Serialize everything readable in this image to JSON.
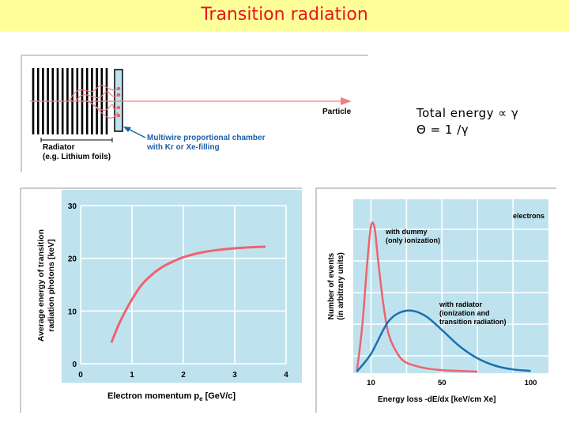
{
  "title": "Transition radiation",
  "formula": {
    "line1": "Total energy ∝ γ",
    "line2": "Θ = 1 /γ"
  },
  "colors": {
    "title_bg": "#ffff99",
    "title_text": "#e8141c",
    "plot_bg": "#bfe3ee",
    "curve_red": "#f0626f",
    "curve_blue": "#1a70b0",
    "annotation_blue": "#1a5fa8",
    "particle_line": "#f08080"
  },
  "detector_diagram": {
    "particle_label": "Particle",
    "radiator_label_line1": "Radiator",
    "radiator_label_line2": "(e.g. Lithium foils)",
    "chamber_label_line1": "Multiwire proportional chamber",
    "chamber_label_line2": "with Kr or Xe-filling"
  },
  "chart_data": [
    {
      "type": "line",
      "xlabel": "Electron momentum p",
      "xlabel_subscript": "e",
      "xlabel_unit": "[GeV/c]",
      "ylabel_line1": "Average energy of transition",
      "ylabel_line2": "radiation photons [keV]",
      "xlim": [
        0,
        4
      ],
      "ylim": [
        0,
        30
      ],
      "xticks": [
        "0",
        "1",
        "2",
        "3",
        "4"
      ],
      "yticks": [
        "0",
        "10",
        "20",
        "30"
      ],
      "grid": true,
      "series": [
        {
          "x": [
            0.6,
            0.75,
            0.9,
            1.05,
            1.2,
            1.4,
            1.6,
            1.8,
            2.0,
            2.3,
            2.6,
            3.0,
            3.3,
            3.6
          ],
          "values": [
            4,
            7.6,
            10.5,
            13.0,
            15.1,
            17.0,
            18.4,
            19.4,
            20.2,
            21.0,
            21.5,
            21.9,
            22.1,
            22.2
          ]
        }
      ]
    },
    {
      "type": "line",
      "xlabel": "Energy loss -dE/dx [keV/cm Xe]",
      "ylabel_line1": "Number of events",
      "ylabel_line2": "(in arbitrary units)",
      "xlim": [
        0,
        110
      ],
      "xticks": [
        "10",
        "50",
        "100"
      ],
      "xtick_values": [
        10,
        50,
        100
      ],
      "grid": true,
      "legend_label": "electrons",
      "series": [
        {
          "name_line1": "with dummy",
          "name_line2": "(only ionization)",
          "x": [
            2,
            5,
            8,
            10,
            12,
            14,
            17,
            20,
            25,
            30,
            40,
            50,
            60,
            70
          ],
          "values": [
            0,
            0.3,
            0.75,
            0.98,
            0.97,
            0.75,
            0.45,
            0.25,
            0.12,
            0.06,
            0.025,
            0.01,
            0.005,
            0
          ]
        },
        {
          "name_line1": "with radiator",
          "name_line2": "(ionization and",
          "name_line3": "transition radiation)",
          "x": [
            2,
            10,
            20,
            30,
            40,
            50,
            60,
            70,
            80,
            90,
            100
          ],
          "values": [
            0,
            0.12,
            0.34,
            0.41,
            0.38,
            0.28,
            0.17,
            0.09,
            0.04,
            0.015,
            0.005
          ]
        }
      ]
    }
  ]
}
